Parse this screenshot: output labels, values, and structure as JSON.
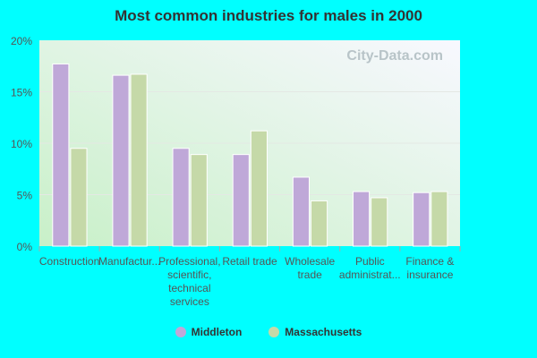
{
  "chart_data": {
    "type": "bar",
    "title": "Most common industries for males in 2000",
    "categories": [
      [
        "Construction"
      ],
      [
        "Manufactur..."
      ],
      [
        "Professional,",
        "scientific,",
        "technical",
        "services"
      ],
      [
        "Retail trade"
      ],
      [
        "Wholesale",
        "trade"
      ],
      [
        "Public",
        "administrat..."
      ],
      [
        "Finance &",
        "insurance"
      ]
    ],
    "series": [
      {
        "name": "Middleton",
        "color": "#bfa8d8",
        "values": [
          17.7,
          16.6,
          9.5,
          8.9,
          6.7,
          5.3,
          5.2
        ]
      },
      {
        "name": "Massachusetts",
        "color": "#c5d9a8",
        "values": [
          9.5,
          16.7,
          8.9,
          11.2,
          4.4,
          4.7,
          5.3
        ]
      }
    ],
    "yticks": [
      "0%",
      "5%",
      "10%",
      "15%",
      "20%"
    ],
    "ylim": [
      0,
      20
    ],
    "grid": true,
    "legend": "bottom",
    "watermark": "City-Data.com"
  }
}
